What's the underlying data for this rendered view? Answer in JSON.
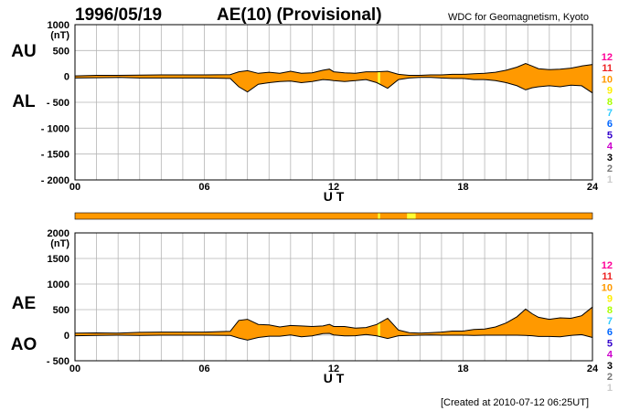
{
  "header": {
    "date": "1996/05/19",
    "index_title": "AE(10) (Provisional)",
    "source": "WDC for Geomagnetism, Kyoto"
  },
  "footer": {
    "created": "[Created at 2010-07-12 06:25UT]"
  },
  "chart_data": [
    {
      "type": "area",
      "panel": "AU-AL",
      "side_labels": [
        "AU",
        "AL"
      ],
      "unit": "(nT)",
      "xlabel": "U T",
      "xlim": [
        0,
        24
      ],
      "ylim": [
        -2000,
        1000
      ],
      "x_ticks": [
        "00",
        "06",
        "12",
        "18",
        "24"
      ],
      "y_ticks": [
        "1000",
        "500",
        "0",
        "- 500",
        "- 1000",
        "- 1500",
        "- 2000"
      ],
      "grid": true,
      "fill_color": "#ff9900",
      "highlight_color": "#ffff33",
      "highlight_x": [
        14.1
      ],
      "series": [
        {
          "name": "AU",
          "x": [
            0,
            1,
            2,
            3,
            4,
            5,
            6,
            7.2,
            7.6,
            8,
            8.5,
            9,
            9.5,
            10,
            10.5,
            11,
            11.5,
            11.8,
            12,
            12.5,
            13,
            13.5,
            14,
            14.5,
            15,
            15.5,
            16,
            16.5,
            17,
            17.5,
            18,
            18.5,
            19,
            19.5,
            20,
            20.5,
            20.9,
            21.2,
            21.5,
            22,
            22.5,
            23,
            23.5,
            24
          ],
          "values": [
            10,
            20,
            20,
            25,
            30,
            30,
            30,
            35,
            90,
            110,
            60,
            80,
            60,
            100,
            60,
            70,
            120,
            140,
            90,
            70,
            60,
            90,
            90,
            100,
            40,
            20,
            20,
            30,
            30,
            40,
            40,
            50,
            60,
            80,
            120,
            180,
            250,
            200,
            150,
            130,
            140,
            160,
            200,
            230
          ]
        },
        {
          "name": "AL",
          "x": [
            0,
            1,
            2,
            3,
            4,
            5,
            6,
            7.2,
            7.6,
            8,
            8.5,
            9,
            9.5,
            10,
            10.5,
            11,
            11.5,
            11.8,
            12,
            12.5,
            13,
            13.5,
            14,
            14.5,
            15,
            15.5,
            16,
            16.5,
            17,
            17.5,
            18,
            18.5,
            19,
            19.5,
            20,
            20.5,
            20.9,
            21.2,
            21.5,
            22,
            22.5,
            23,
            23.5,
            24
          ],
          "values": [
            -30,
            -25,
            -20,
            -30,
            -30,
            -30,
            -30,
            -40,
            -200,
            -300,
            -150,
            -120,
            -100,
            -90,
            -120,
            -100,
            -60,
            -70,
            -80,
            -100,
            -80,
            -60,
            -120,
            -230,
            -60,
            -30,
            -20,
            -20,
            -30,
            -40,
            -40,
            -60,
            -60,
            -80,
            -120,
            -180,
            -260,
            -220,
            -200,
            -180,
            -200,
            -170,
            -180,
            -320
          ]
        }
      ],
      "legend": [
        {
          "label": "12",
          "color": "#ff0099"
        },
        {
          "label": "11",
          "color": "#ee2222"
        },
        {
          "label": "10",
          "color": "#ff9900"
        },
        {
          "label": "9",
          "color": "#ffee00"
        },
        {
          "label": "8",
          "color": "#aaff00"
        },
        {
          "label": "7",
          "color": "#33ccff"
        },
        {
          "label": "6",
          "color": "#0066ff"
        },
        {
          "label": "5",
          "color": "#3300cc"
        },
        {
          "label": "4",
          "color": "#cc00cc"
        },
        {
          "label": "3",
          "color": "#000000"
        },
        {
          "label": "2",
          "color": "#777777"
        },
        {
          "label": "1",
          "color": "#cccccc"
        }
      ]
    },
    {
      "type": "area",
      "panel": "AE-AO",
      "side_labels": [
        "AE",
        "AO"
      ],
      "unit": "(nT)",
      "xlabel": "U T",
      "xlim": [
        0,
        24
      ],
      "ylim": [
        -500,
        2000
      ],
      "x_ticks": [
        "00",
        "06",
        "12",
        "18",
        "24"
      ],
      "y_ticks": [
        "2000",
        "1500",
        "1000",
        "500",
        "0",
        "- 500"
      ],
      "grid": true,
      "fill_color": "#ff9900",
      "highlight_color": "#ffff33",
      "highlight_x": [
        14.1
      ],
      "series": [
        {
          "name": "AE",
          "x": [
            0,
            1,
            2,
            3,
            4,
            5,
            6,
            7.2,
            7.6,
            8,
            8.5,
            9,
            9.5,
            10,
            10.5,
            11,
            11.5,
            11.8,
            12,
            12.5,
            13,
            13.5,
            14,
            14.5,
            15,
            15.5,
            16,
            16.5,
            17,
            17.5,
            18,
            18.5,
            19,
            19.5,
            20,
            20.5,
            20.9,
            21.2,
            21.5,
            22,
            22.5,
            23,
            23.5,
            24
          ],
          "values": [
            40,
            45,
            40,
            55,
            60,
            60,
            60,
            75,
            290,
            310,
            210,
            200,
            160,
            190,
            180,
            170,
            180,
            210,
            170,
            170,
            140,
            150,
            210,
            330,
            100,
            50,
            40,
            50,
            60,
            80,
            80,
            110,
            120,
            160,
            240,
            360,
            510,
            420,
            350,
            310,
            340,
            330,
            380,
            550
          ]
        },
        {
          "name": "AO",
          "x": [
            0,
            1,
            2,
            3,
            4,
            5,
            6,
            7.2,
            7.6,
            8,
            8.5,
            9,
            9.5,
            10,
            10.5,
            11,
            11.5,
            11.8,
            12,
            12.5,
            13,
            13.5,
            14,
            14.5,
            15,
            15.5,
            16,
            16.5,
            17,
            17.5,
            18,
            18.5,
            19,
            19.5,
            20,
            20.5,
            20.9,
            21.2,
            21.5,
            22,
            22.5,
            23,
            23.5,
            24
          ],
          "values": [
            -10,
            -3,
            0,
            -3,
            0,
            0,
            0,
            -3,
            -55,
            -95,
            -45,
            -20,
            -20,
            5,
            -30,
            -15,
            30,
            35,
            5,
            -15,
            -10,
            15,
            -15,
            -65,
            -10,
            -5,
            0,
            5,
            0,
            0,
            0,
            -5,
            0,
            0,
            0,
            0,
            -5,
            -10,
            -25,
            -25,
            -30,
            -5,
            10,
            -45
          ]
        }
      ],
      "legend": [
        {
          "label": "12",
          "color": "#ff0099"
        },
        {
          "label": "11",
          "color": "#ee2222"
        },
        {
          "label": "10",
          "color": "#ff9900"
        },
        {
          "label": "9",
          "color": "#ffee00"
        },
        {
          "label": "8",
          "color": "#aaff00"
        },
        {
          "label": "7",
          "color": "#33ccff"
        },
        {
          "label": "6",
          "color": "#0066ff"
        },
        {
          "label": "5",
          "color": "#3300cc"
        },
        {
          "label": "4",
          "color": "#cc00cc"
        },
        {
          "label": "3",
          "color": "#000000"
        },
        {
          "label": "2",
          "color": "#777777"
        },
        {
          "label": "1",
          "color": "#cccccc"
        }
      ]
    }
  ],
  "coverage_bar": {
    "base_color": "#ff9900",
    "segments": [
      {
        "x": [
          14.05,
          14.15
        ],
        "color": "#ffff33"
      },
      {
        "x": [
          15.4,
          15.8
        ],
        "color": "#ffff33"
      }
    ]
  }
}
